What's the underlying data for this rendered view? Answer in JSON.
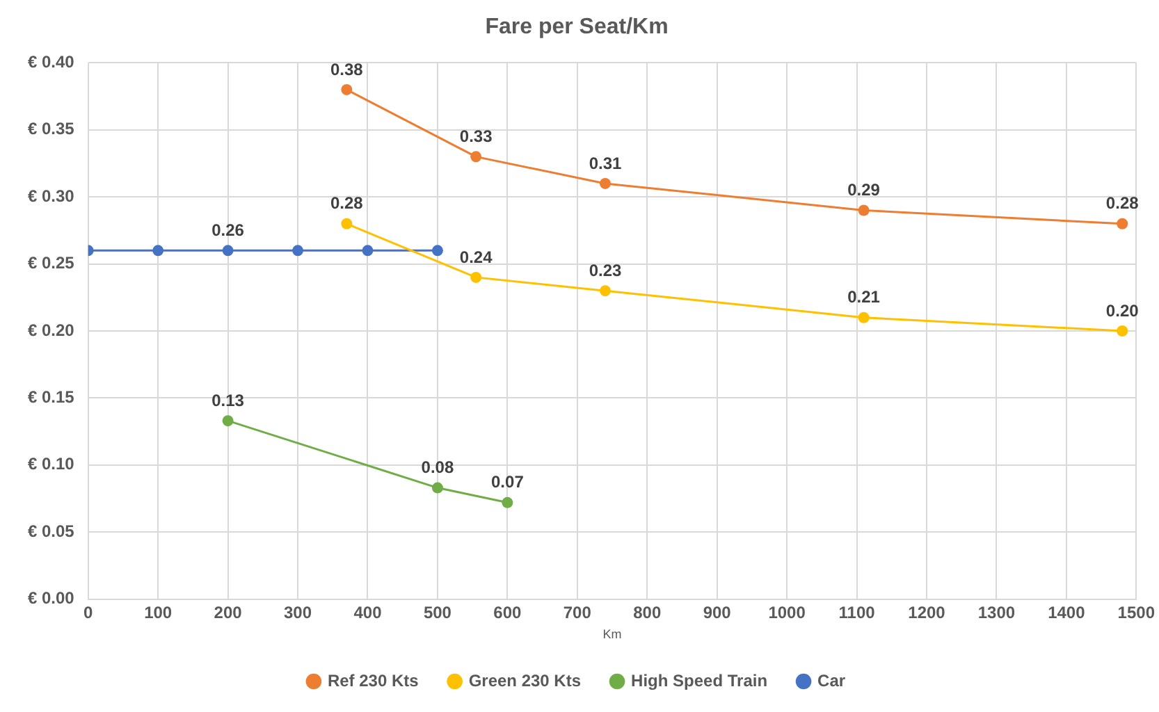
{
  "chart_data": {
    "type": "line",
    "title": "Fare per Seat/Km",
    "xlabel": "Km",
    "xlim": [
      0,
      1500
    ],
    "xticks": [
      0,
      100,
      200,
      300,
      400,
      500,
      600,
      700,
      800,
      900,
      1000,
      1100,
      1200,
      1300,
      1400,
      1500
    ],
    "ylim": [
      0,
      0.4
    ],
    "yticks": [
      {
        "value": 0,
        "label": "€ 0.00"
      },
      {
        "value": 0.05,
        "label": "€ 0.05"
      },
      {
        "value": 0.1,
        "label": "€ 0.10"
      },
      {
        "value": 0.15,
        "label": "€ 0.15"
      },
      {
        "value": 0.2,
        "label": "€ 0.20"
      },
      {
        "value": 0.25,
        "label": "€ 0.25"
      },
      {
        "value": 0.3,
        "label": "€ 0.30"
      },
      {
        "value": 0.35,
        "label": "€ 0.35"
      },
      {
        "value": 0.4,
        "label": "€ 0.40"
      }
    ],
    "grid": true,
    "legend": "bottom",
    "marker": "circle",
    "line_style": "solid",
    "series": [
      {
        "name": "Ref 230 Kts",
        "color": "#ed7d31",
        "x": [
          370,
          555,
          740,
          1110,
          1480
        ],
        "values": [
          0.38,
          0.33,
          0.31,
          0.29,
          0.28
        ],
        "value_labels": [
          "0.38",
          "0.33",
          "0.31",
          "0.29",
          "0.28"
        ]
      },
      {
        "name": "Green 230 Kts",
        "color": "#ffc000",
        "x": [
          370,
          555,
          740,
          1110,
          1480
        ],
        "values": [
          0.28,
          0.24,
          0.23,
          0.21,
          0.2
        ],
        "value_labels": [
          "0.28",
          "0.24",
          "0.23",
          "0.21",
          "0.20"
        ]
      },
      {
        "name": "High Speed Train",
        "color": "#70ad47",
        "x": [
          200,
          500,
          600
        ],
        "values": [
          0.133,
          0.083,
          0.072
        ],
        "value_labels": [
          "0.13",
          "0.08",
          "0.07"
        ]
      },
      {
        "name": "Car",
        "color": "#4472c4",
        "x": [
          0,
          100,
          200,
          300,
          400,
          500
        ],
        "values": [
          0.26,
          0.26,
          0.26,
          0.26,
          0.26,
          0.26
        ],
        "value_labels": [
          null,
          null,
          "0.26",
          null,
          null,
          null
        ]
      }
    ]
  }
}
